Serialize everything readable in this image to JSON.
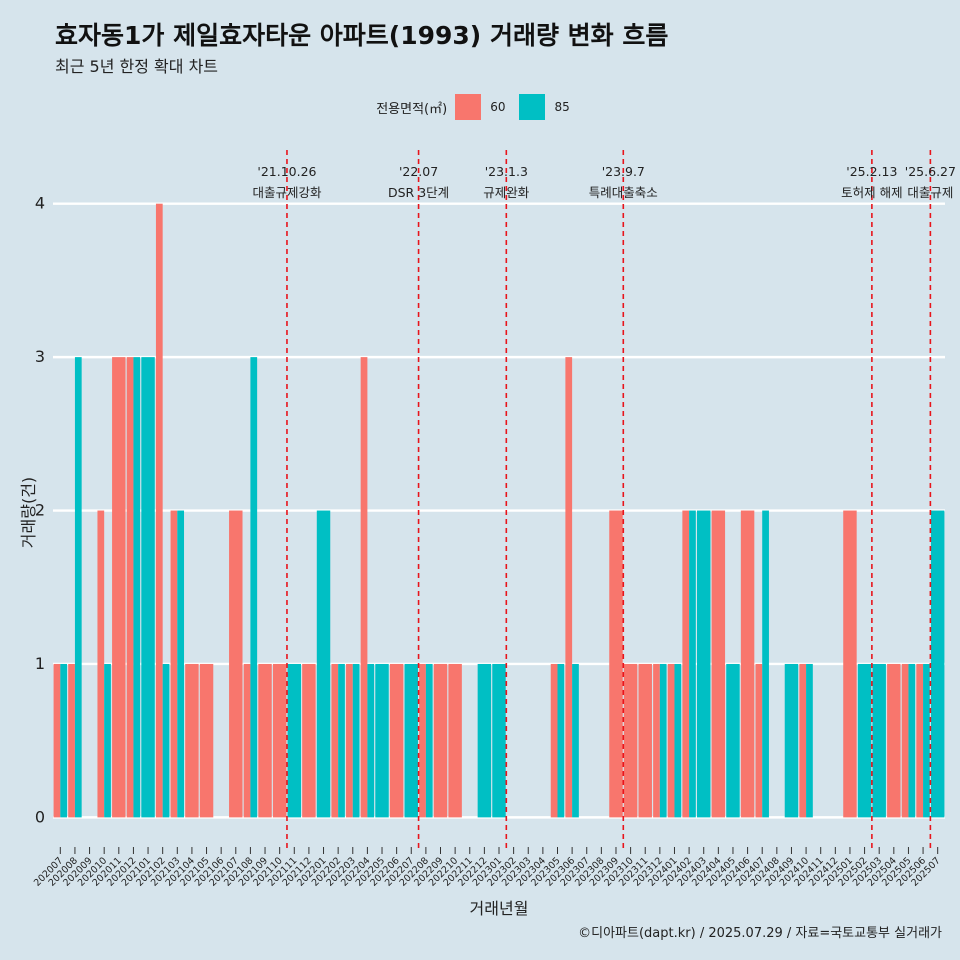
{
  "header": {
    "title": "효자동1가 제일효자타운 아파트(1993) 거래량 변화 흐름",
    "subtitle": "최근 5년 한정 확대 차트"
  },
  "legend": {
    "title": "전용면적(㎡)",
    "items": [
      {
        "label": "60",
        "color": "#f8766d"
      },
      {
        "label": "85",
        "color": "#00bfc4"
      }
    ]
  },
  "caption": "©디아파트(dapt.kr) / 2025.07.29 / 자료=국토교통부 실거래가",
  "chart_data": {
    "type": "bar",
    "title": "효자동1가 제일효자타운 아파트(1993) 거래량 변화 흐름",
    "xlabel": "거래년월",
    "ylabel": "거래량(건)",
    "ylim": [
      -0.18,
      4.35
    ],
    "yticks": [
      0,
      1,
      2,
      3,
      4
    ],
    "categories": [
      "202007",
      "202008",
      "202009",
      "202010",
      "202011",
      "202012",
      "202101",
      "202102",
      "202103",
      "202104",
      "202105",
      "202106",
      "202107",
      "202108",
      "202109",
      "202110",
      "202111",
      "202112",
      "202201",
      "202202",
      "202203",
      "202204",
      "202205",
      "202206",
      "202207",
      "202208",
      "202209",
      "202210",
      "202211",
      "202212",
      "202301",
      "202302",
      "202303",
      "202304",
      "202305",
      "202306",
      "202307",
      "202308",
      "202309",
      "202310",
      "202311",
      "202312",
      "202401",
      "202402",
      "202403",
      "202404",
      "202405",
      "202406",
      "202407",
      "202408",
      "202409",
      "202410",
      "202411",
      "202412",
      "202501",
      "202502",
      "202503",
      "202504",
      "202505",
      "202506",
      "202507"
    ],
    "series": [
      {
        "name": "60",
        "color": "#f8766d",
        "values": [
          1,
          1,
          null,
          2,
          3,
          3,
          null,
          4,
          2,
          1,
          1,
          null,
          2,
          1,
          1,
          1,
          null,
          1,
          null,
          1,
          1,
          3,
          null,
          1,
          null,
          1,
          1,
          1,
          null,
          null,
          null,
          null,
          null,
          null,
          1,
          3,
          null,
          null,
          2,
          1,
          1,
          1,
          1,
          2,
          null,
          2,
          null,
          2,
          1,
          null,
          null,
          1,
          null,
          null,
          2,
          null,
          null,
          1,
          1,
          1,
          null
        ]
      },
      {
        "name": "85",
        "color": "#00bfc4",
        "values": [
          1,
          3,
          null,
          1,
          null,
          3,
          3,
          1,
          2,
          null,
          null,
          null,
          null,
          3,
          null,
          null,
          1,
          null,
          2,
          1,
          1,
          1,
          1,
          null,
          1,
          1,
          null,
          null,
          null,
          1,
          1,
          null,
          null,
          null,
          1,
          1,
          null,
          null,
          null,
          null,
          null,
          1,
          1,
          2,
          2,
          null,
          1,
          null,
          2,
          null,
          1,
          1,
          null,
          null,
          null,
          1,
          1,
          null,
          1,
          1,
          2
        ]
      }
    ],
    "events": [
      {
        "date": "'21.10.26",
        "label": "대출규제강화",
        "after": "202110"
      },
      {
        "date": "'22.07",
        "label": "DSR 3단계",
        "after": "202207"
      },
      {
        "date": "'23.1.3",
        "label": "규제완화",
        "after": "202301"
      },
      {
        "date": "'23.9.7",
        "label": "특례대출축소",
        "after": "202309"
      },
      {
        "date": "'25.2.13",
        "label": "토허제 해제",
        "after": "202502"
      },
      {
        "date": "'25.6.27",
        "label": "대출규제",
        "after": "202506"
      }
    ]
  }
}
